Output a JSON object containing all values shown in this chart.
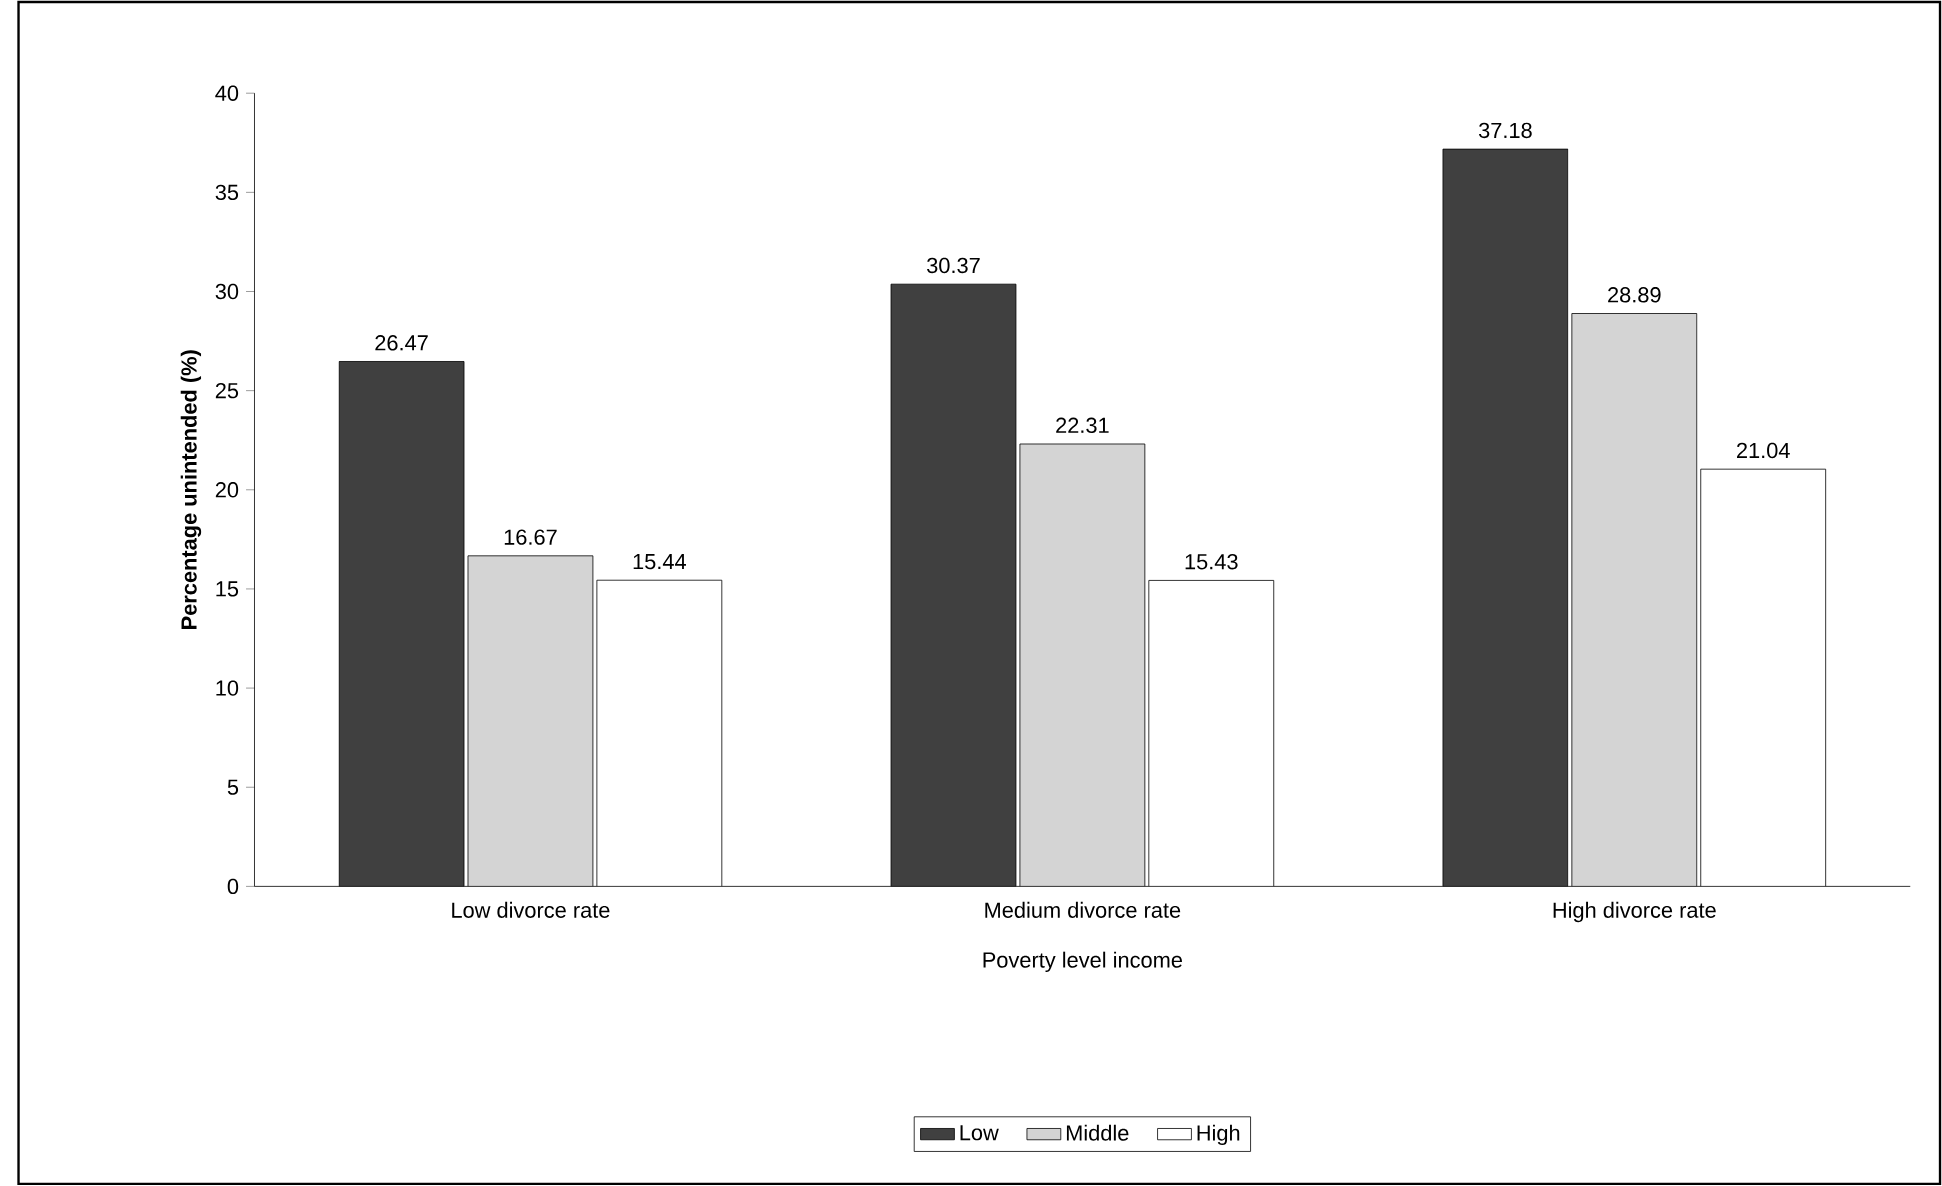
{
  "chart_data": {
    "type": "bar",
    "xlabel": "Poverty level income",
    "ylabel": "Percentage unintended (%)",
    "categories": [
      "Low divorce rate",
      "Medium divorce rate",
      "High divorce rate"
    ],
    "series": [
      {
        "name": "Low",
        "color": "#404040",
        "values": [
          26.47,
          30.37,
          37.18
        ]
      },
      {
        "name": "Middle",
        "color": "#d4d4d4",
        "values": [
          16.67,
          22.31,
          28.89
        ]
      },
      {
        "name": "High",
        "color": "#ffffff",
        "values": [
          15.44,
          15.43,
          21.04
        ]
      }
    ],
    "ylim": [
      0,
      40
    ],
    "yticks": [
      0,
      5,
      10,
      15,
      20,
      25,
      30,
      35,
      40
    ],
    "data_labels": true,
    "legend": "bottom",
    "grid": false
  }
}
